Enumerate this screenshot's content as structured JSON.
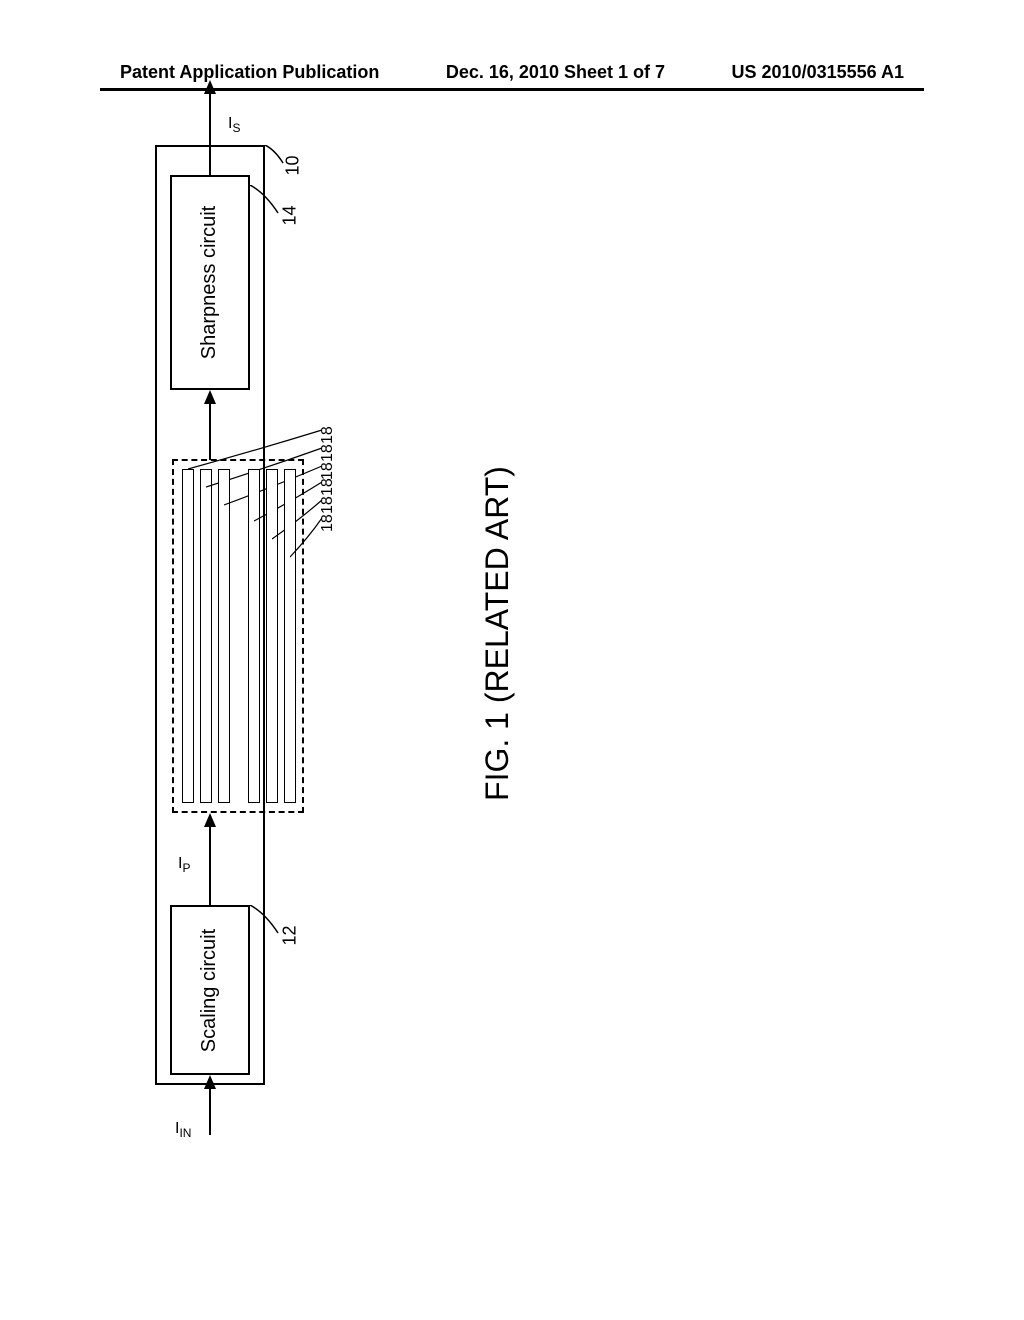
{
  "header": {
    "left": "Patent Application Publication",
    "center": "Dec. 16, 2010  Sheet 1 of 7",
    "right": "US 2010/0315556 A1"
  },
  "signals": {
    "input": "I",
    "input_sub": "IN",
    "intermediate": "I",
    "intermediate_sub": "P",
    "output": "I",
    "output_sub": "S"
  },
  "blocks": {
    "scaling": "Scaling circuit",
    "sharpness": "Sharpness circuit"
  },
  "refs": {
    "system": "10",
    "scaling": "12",
    "sharpness": "14",
    "buffer": "18"
  },
  "caption": "FIG. 1 (RELATED ART)",
  "buffers": {
    "count": 6,
    "positions": [
      340,
      365,
      390,
      445,
      470,
      495
    ],
    "heights": [
      320,
      320,
      320,
      320,
      320,
      320
    ]
  }
}
